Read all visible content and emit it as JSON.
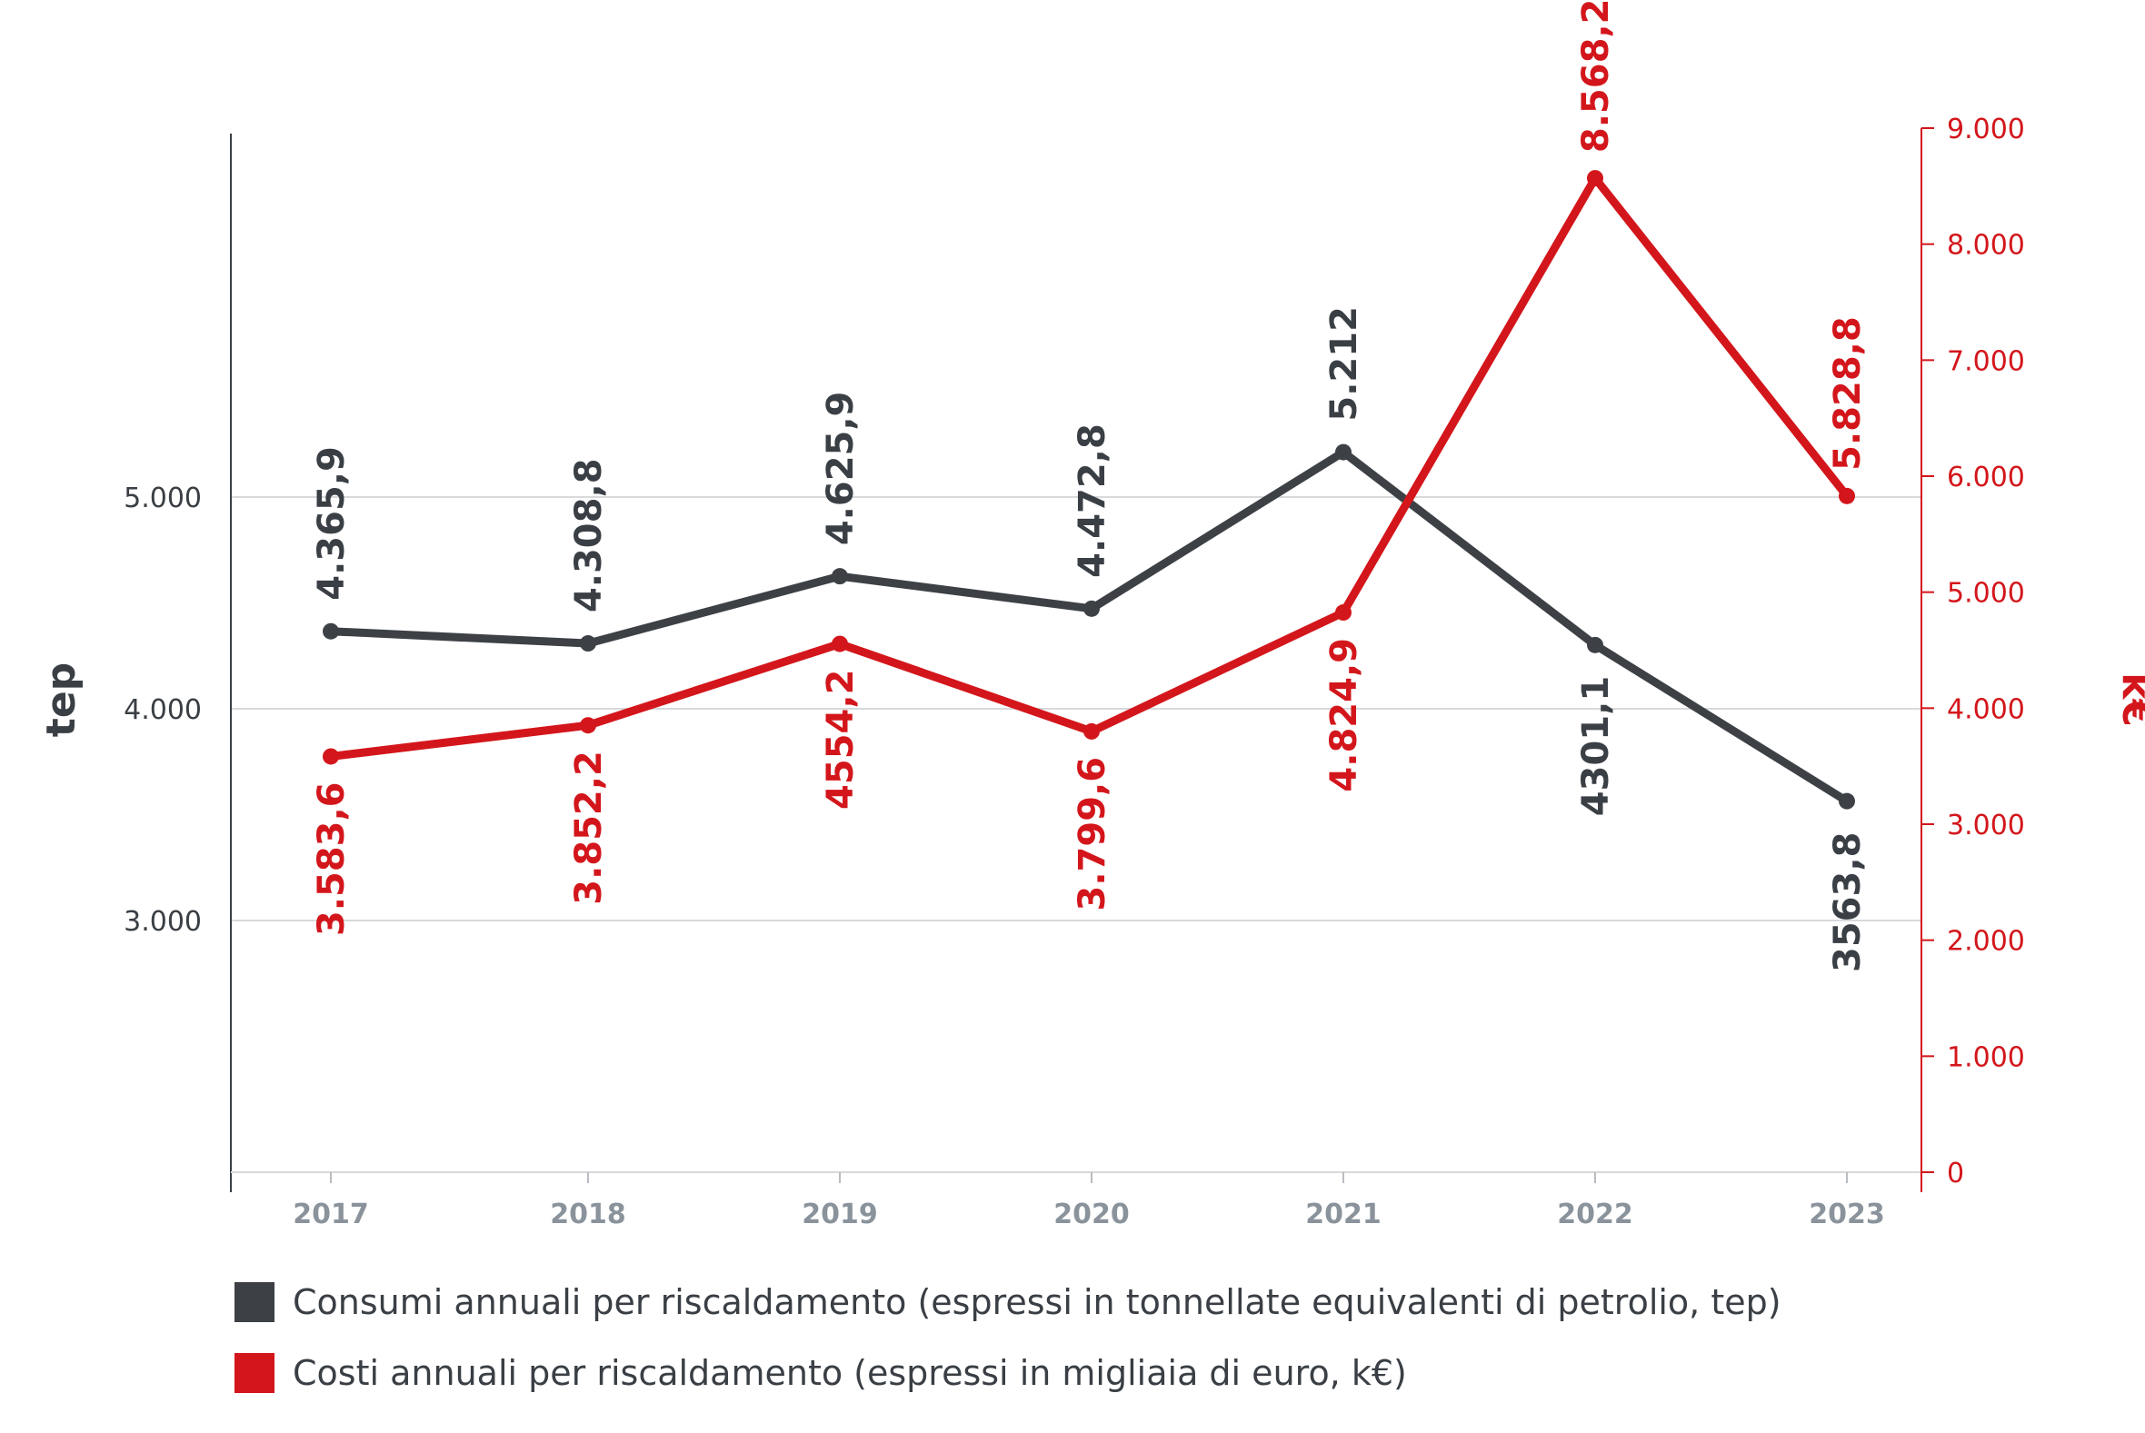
{
  "chart_data": {
    "type": "line",
    "categories": [
      "2017",
      "2018",
      "2019",
      "2020",
      "2021",
      "2022",
      "2023"
    ],
    "series": [
      {
        "name": "Consumi annuali per riscaldamento (espressi in tonnellate equivalenti di petrolio, tep)",
        "axis": "left",
        "color": "#3d4146",
        "values": [
          4365.9,
          4308.8,
          4625.9,
          4472.8,
          5212,
          4301.1,
          3563.8
        ],
        "labels": [
          "4.365,9",
          "4.308,8",
          "4.625,9",
          "4.472,8",
          "5.212",
          "4301,1",
          "3563,8"
        ]
      },
      {
        "name": "Costi annuali per riscaldamento (espressi in migliaia di euro, k€)",
        "axis": "right",
        "color": "#d3161b",
        "values": [
          3583.6,
          3852.2,
          4554.2,
          3799.6,
          4824.9,
          8568.2,
          5828.8
        ],
        "labels": [
          "3.583,6",
          "3.852,2",
          "4554,2",
          "3.799,6",
          "4.824,9",
          "8.568,2",
          "5.828,8"
        ]
      }
    ],
    "y_left": {
      "label": "tep",
      "ticks": [
        3000,
        4000,
        5000
      ],
      "tick_labels": [
        "3.000",
        "4.000",
        "5.000"
      ]
    },
    "y_right": {
      "label": "k€",
      "range": [
        0,
        9000
      ],
      "ticks": [
        0,
        1000,
        2000,
        3000,
        4000,
        5000,
        6000,
        7000,
        8000,
        9000
      ],
      "tick_labels": [
        "0",
        "1.000",
        "2.000",
        "3.000",
        "4.000",
        "5.000",
        "6.000",
        "7.000",
        "8.000",
        "9.000"
      ]
    },
    "grid": true,
    "legend_position": "bottom-left"
  },
  "legend": [
    {
      "text": "Consumi annuali per riscaldamento (espressi in tonnellate equivalenti di petrolio, tep)",
      "color": "#3d4146"
    },
    {
      "text": "Costi annuali per riscaldamento (espressi in migliaia di euro, k€)",
      "color": "#d3161b"
    }
  ]
}
